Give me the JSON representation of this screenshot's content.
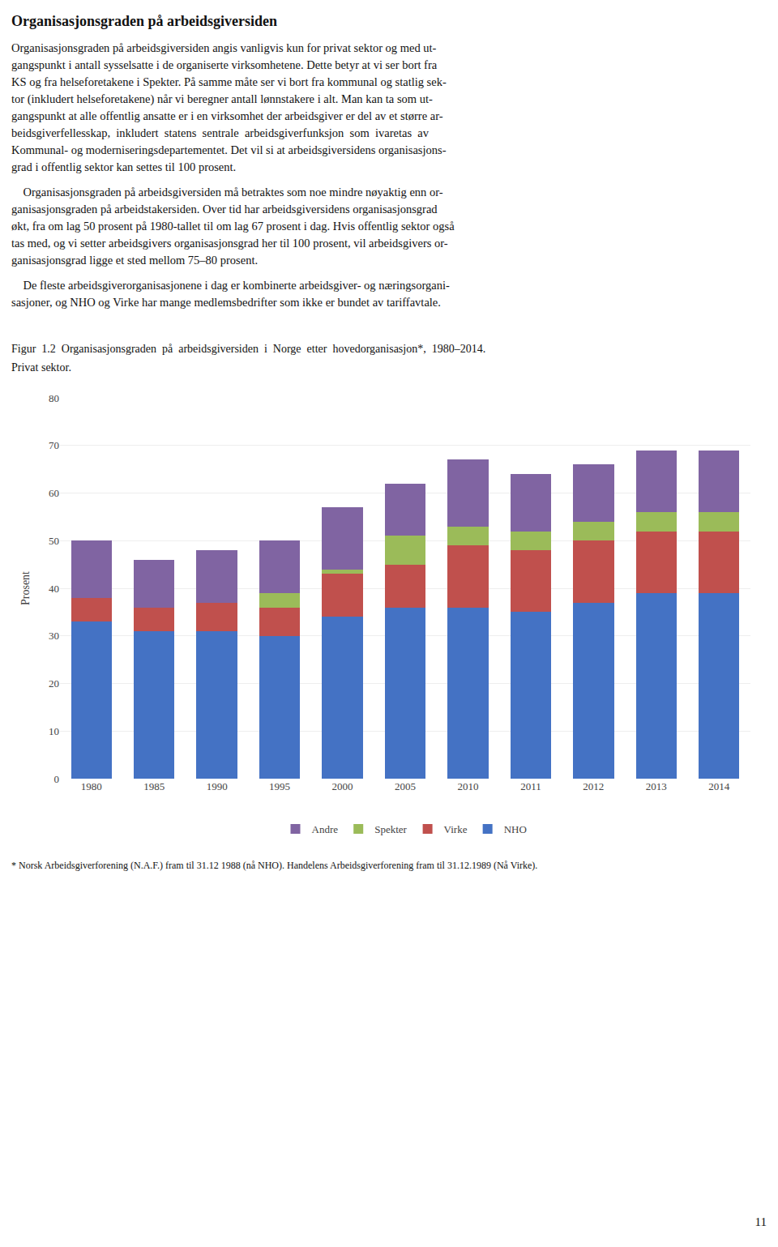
{
  "chart_data": {
    "type": "bar",
    "stacked": true,
    "title": "Figur  1.2  Organisasjonsgraden  på  arbeidsgiversiden  i  Norge  etter  hovedorganisasjon*,  1980–2014.",
    "subtitle": "Privat sektor.",
    "annotations": [
      "Organisasjonsgraden på arbeidsgiversiden",
      "Organisasjonsgraden på arbeidsgiversiden angis vanligvis kun for privat sektor og med ut-\ngangspunkt i antall sysselsatte i de organiserte virksomhetene. Dette betyr at vi ser bort fra\nKS og fra helseforetakene i Spekter. På samme måte ser vi bort fra kommunal og statlig sek-\ntor (inkludert helseforetakene) når vi beregner antall lønnstakere i alt. Man kan ta som ut-\ngangspunkt at alle offentlig ansatte er i en virksomhet der arbeidsgiver er del av et større ar-\nbeidsgiverfellesskap,  inkludert  statens  sentrale  arbeidsgiverfunksjon  som  ivaretas  av\nKommunal- og moderniseringsdepartementet. Det vil si at arbeidsgiversidens organisasjons-\ngrad i offentlig sektor kan settes til 100 prosent.",
      "    Organisasjonsgraden på arbeidsgiversiden må betraktes som noe mindre nøyaktig enn or-\nganisasjonsgraden på arbeidstakersiden. Over tid har arbeidsgiversidens organisasjonsgrad\nøkt, fra om lag 50 prosent på 1980-tallet til om lag 67 prosent i dag. Hvis offentlig sektor også\ntas med, og vi setter arbeidsgivers organisasjonsgrad her til 100 prosent, vil arbeidsgivers or-\nganisasjonsgrad ligge et sted mellom 75–80 prosent.",
      "    De fleste arbeidsgiverorganisasjonene i dag er kombinerte arbeidsgiver- og næringsorgani-\nsasjoner, og NHO og Virke har mange medlemsbedrifter som ikke er bundet av tariffavtale.",
      "* Norsk Arbeidsgiverforening (N.A.F.) fram til 31.12 1988 (nå NHO). Handelens Arbeidsgiverforening fram til 31.12.1989 (Nå Virke).",
      "11"
    ],
    "categories": [
      "1980",
      "1985",
      "1990",
      "1995",
      "2000",
      "2005",
      "2010",
      "2011",
      "2012",
      "2013",
      "2014"
    ],
    "series": [
      {
        "name": "NHO",
        "color": "#4472C4",
        "values": [
          33,
          31,
          31,
          30,
          34,
          36,
          36,
          35,
          37,
          39,
          39
        ]
      },
      {
        "name": "Virke",
        "color": "#C0504D",
        "values": [
          5,
          5,
          6,
          6,
          9,
          9,
          13,
          13,
          13,
          13,
          13
        ]
      },
      {
        "name": "Spekter",
        "color": "#9BBB59",
        "values": [
          0,
          0,
          0,
          3,
          1,
          6,
          4,
          4,
          4,
          4,
          4
        ]
      },
      {
        "name": "Andre",
        "color": "#8064A2",
        "values": [
          12,
          10,
          11,
          11,
          13,
          11,
          14,
          12,
          12,
          13,
          13
        ]
      }
    ],
    "ylabel": "Prosent",
    "ylim": [
      0,
      80
    ],
    "yticks": [
      0,
      10,
      20,
      30,
      40,
      50,
      60,
      70,
      80
    ],
    "grid": true,
    "legend": "bottom"
  }
}
